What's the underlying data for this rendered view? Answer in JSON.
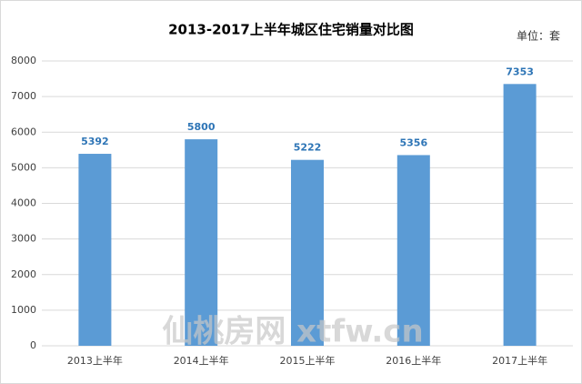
{
  "chart_data": {
    "type": "bar",
    "title": "2013-2017上半年城区住宅销量对比图",
    "unit_label": "单位：套",
    "watermark": "仙桃房网 xtfw.cn",
    "categories": [
      "2013上半年",
      "2014上半年",
      "2015上半年",
      "2016上半年",
      "2017上半年"
    ],
    "values": [
      5392,
      5800,
      5222,
      5356,
      7353
    ],
    "color": "#5b9bd5",
    "label_color": "#2e75b6",
    "ylim": [
      0,
      8000
    ],
    "yticks": [
      0,
      1000,
      2000,
      3000,
      4000,
      5000,
      6000,
      7000,
      8000
    ],
    "grid": true
  }
}
